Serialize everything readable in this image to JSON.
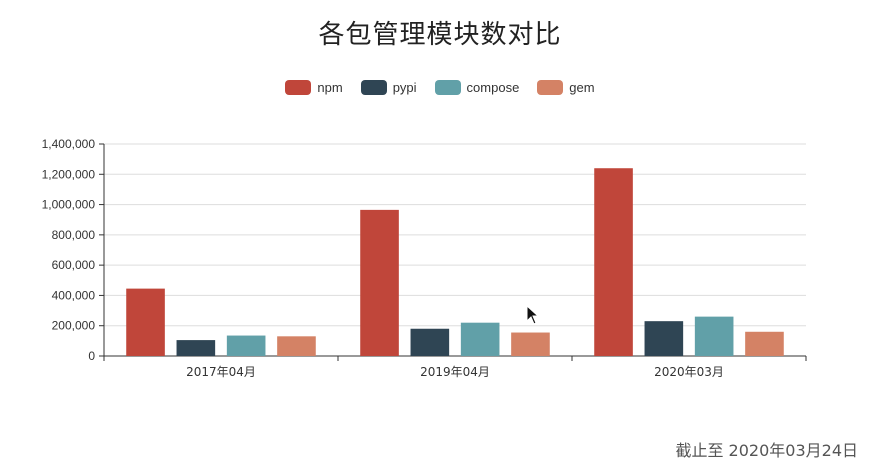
{
  "chart_data": {
    "type": "bar",
    "title": "各包管理模块数对比",
    "categories": [
      "2017年04月",
      "2019年04月",
      "2020年03月"
    ],
    "series": [
      {
        "name": "npm",
        "color": "#c0463a",
        "values": [
          445000,
          965000,
          1240000
        ]
      },
      {
        "name": "pypi",
        "color": "#2f4554",
        "values": [
          105000,
          180000,
          230000
        ]
      },
      {
        "name": "compose",
        "color": "#61a0a8",
        "values": [
          135000,
          220000,
          260000
        ]
      },
      {
        "name": "gem",
        "color": "#d48265",
        "values": [
          130000,
          155000,
          160000
        ]
      }
    ],
    "ylim": [
      0,
      1400000
    ],
    "yticks": [
      "0",
      "200,000",
      "400,000",
      "600,000",
      "800,000",
      "1,000,000",
      "1,200,000",
      "1,400,000"
    ],
    "legend_position": "top-center",
    "grid": true
  },
  "footnote": "截止至 2020年03月24日",
  "icons": {
    "cursor": "mouse-pointer-icon"
  }
}
